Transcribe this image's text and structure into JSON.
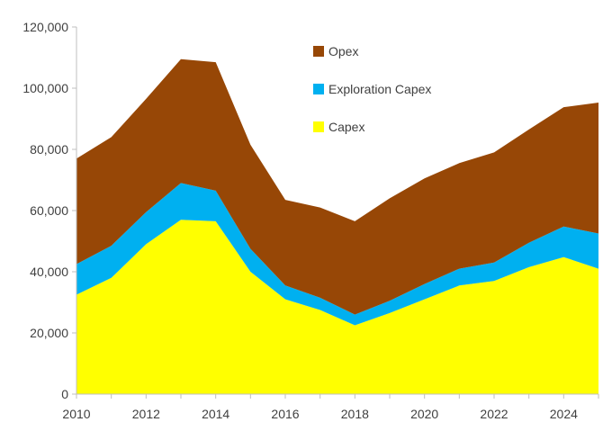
{
  "chart_data": {
    "type": "area",
    "stacked": true,
    "title": "",
    "xlabel": "",
    "ylabel": "",
    "x": [
      2010,
      2011,
      2012,
      2013,
      2014,
      2015,
      2016,
      2017,
      2018,
      2019,
      2020,
      2021,
      2022,
      2023,
      2024,
      2025
    ],
    "xlim": [
      2010,
      2025
    ],
    "ylim": [
      0,
      120000
    ],
    "x_ticks": [
      2010,
      2012,
      2014,
      2016,
      2018,
      2020,
      2022,
      2024
    ],
    "x_tick_labels": [
      "2010",
      "2012",
      "2014",
      "2016",
      "2018",
      "2020",
      "2022",
      "2024"
    ],
    "y_ticks": [
      0,
      20000,
      40000,
      60000,
      80000,
      100000,
      120000
    ],
    "y_tick_labels": [
      "0",
      "20,000",
      "40,000",
      "60,000",
      "80,000",
      "100,000",
      "120,000"
    ],
    "grid": false,
    "legend_position": "top-center",
    "series": [
      {
        "name": "Capex",
        "color": "#FFFF00",
        "values": [
          32500,
          38000,
          49000,
          57000,
          56500,
          40000,
          31000,
          27500,
          22500,
          26500,
          31000,
          35500,
          37000,
          41500,
          44800,
          41000
        ]
      },
      {
        "name": "Exploration Capex",
        "color": "#00B0F0",
        "values": [
          10000,
          10500,
          10500,
          12000,
          10000,
          7500,
          4500,
          4000,
          3500,
          4000,
          5000,
          5500,
          6000,
          8000,
          10000,
          11500
        ]
      },
      {
        "name": "Opex",
        "color": "#974706",
        "values": [
          34500,
          35500,
          37000,
          40500,
          42000,
          34000,
          28000,
          29500,
          30500,
          33500,
          34500,
          34500,
          36000,
          37000,
          39000,
          42800
        ]
      }
    ],
    "legend_order": [
      "Opex",
      "Exploration Capex",
      "Capex"
    ]
  }
}
